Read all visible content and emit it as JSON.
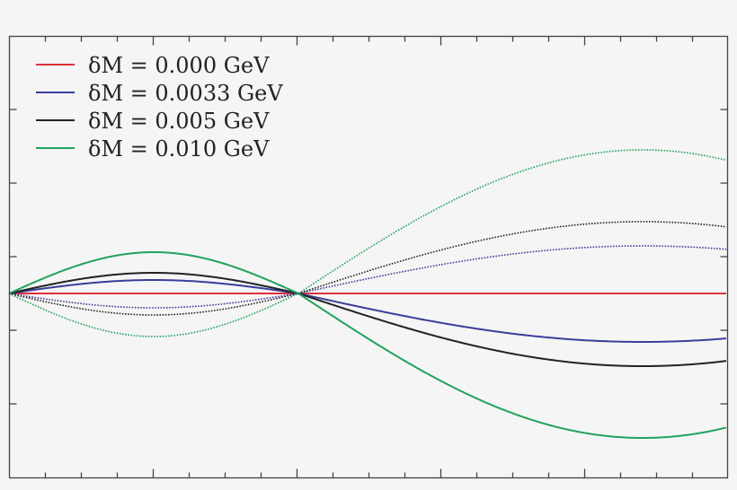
{
  "chart_data": {
    "type": "line",
    "title": "",
    "xlabel": "",
    "ylabel": "",
    "x_tick_labels": [],
    "y_tick_labels": [],
    "grid": false,
    "legend_position": "upper left",
    "note": "Axis tick labels are not visible; values are in relative (pixel-derived) units with 0 at the central horizontal line. x spans frame 0..1, curves cross zero at x=0, x≈0.40 and peak near x≈0.20 (left) and x≈0.88 (right).",
    "x": [
      0.0,
      0.1,
      0.2,
      0.3,
      0.4,
      0.5,
      0.6,
      0.7,
      0.8,
      0.9,
      1.0
    ],
    "series": [
      {
        "name": "δM = 0.000 GeV",
        "color": "#e0313b",
        "style": "solid",
        "values": [
          0,
          0,
          0,
          0,
          0,
          0,
          0,
          0,
          0,
          0,
          0
        ],
        "left_amp": 0,
        "right_amp": 0
      },
      {
        "name": "δM = 0.0033 GeV",
        "color": "#3a3d9c",
        "style": "solid",
        "values": [
          0,
          10,
          15,
          11,
          0,
          -17,
          -32,
          -44,
          -52,
          -54,
          -50
        ],
        "left_amp": 15,
        "right_amp": -54
      },
      {
        "name": "δM = 0.005 GeV",
        "color": "#222222",
        "style": "solid",
        "values": [
          0,
          16,
          23,
          17,
          0,
          -26,
          -48,
          -66,
          -78,
          -81,
          -75
        ],
        "left_amp": 23,
        "right_amp": -81
      },
      {
        "name": "δM = 0.010 GeV",
        "color": "#1fa35c",
        "style": "solid",
        "values": [
          0,
          32,
          46,
          34,
          0,
          -51,
          -96,
          -132,
          -155,
          -161,
          -149
        ],
        "left_amp": 46,
        "right_amp": -161
      },
      {
        "name": "δM = 0.0033 GeV (dotted)",
        "color": "#3a3d9c",
        "style": "dotted",
        "values": [
          0,
          -11,
          -16,
          -12,
          0,
          17,
          31,
          43,
          51,
          53,
          49
        ],
        "left_amp": -16,
        "right_amp": 53
      },
      {
        "name": "δM = 0.005 GeV (dotted)",
        "color": "#222222",
        "style": "dotted",
        "values": [
          0,
          -17,
          -24,
          -18,
          0,
          25,
          47,
          66,
          77,
          80,
          74
        ],
        "left_amp": -24,
        "right_amp": 80
      },
      {
        "name": "δM = 0.010 GeV (dotted)",
        "color": "#1fa35c",
        "style": "dotted",
        "values": [
          0,
          -34,
          -48,
          -36,
          0,
          51,
          95,
          131,
          154,
          160,
          148
        ],
        "left_amp": -48,
        "right_amp": 160
      }
    ]
  },
  "legend": {
    "items": [
      {
        "label": "δM = 0.000 GeV",
        "color": "#e0313b"
      },
      {
        "label": "δM = 0.0033 GeV",
        "color": "#3a3d9c"
      },
      {
        "label": "δM = 0.005 GeV",
        "color": "#222222"
      },
      {
        "label": "δM = 0.010 GeV",
        "color": "#1fa35c"
      }
    ]
  }
}
